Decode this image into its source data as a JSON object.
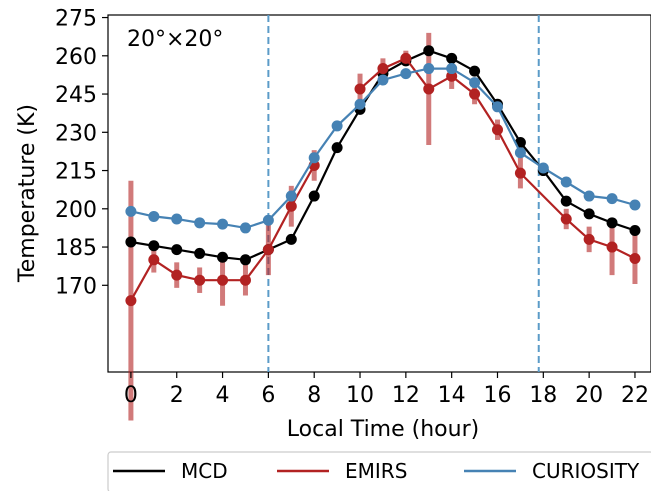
{
  "chart_data": {
    "type": "line",
    "annotation": "20°×20°",
    "xlabel": "Local Time (hour)",
    "ylabel": "Temperature (K)",
    "xlim": [
      -1,
      22.7
    ],
    "ylim": [
      136,
      276
    ],
    "xticks": [
      0,
      2,
      4,
      6,
      8,
      10,
      12,
      14,
      16,
      18,
      20,
      22
    ],
    "yticks": [
      170,
      185,
      200,
      215,
      230,
      245,
      260,
      275
    ],
    "vlines": [
      6,
      17.8
    ],
    "legend_position": "bottom",
    "series": [
      {
        "name": "MCD",
        "color": "#000000",
        "x": [
          0,
          1,
          2,
          3,
          4,
          5,
          6,
          7,
          8,
          9,
          10,
          11,
          12,
          13,
          14,
          15,
          16,
          17,
          18,
          19,
          20,
          21,
          22
        ],
        "y": [
          187,
          185.5,
          184,
          182.5,
          181,
          180,
          184,
          188,
          205,
          224,
          239,
          253,
          258,
          262,
          259,
          254,
          241,
          226,
          215,
          203,
          198,
          194.5,
          191.5
        ]
      },
      {
        "name": "EMIRS",
        "color": "#b22222",
        "x": [
          0,
          1,
          2,
          3,
          4,
          5,
          6,
          7,
          8,
          9,
          10,
          11,
          12,
          13,
          14,
          15,
          16,
          17,
          19,
          20,
          21,
          22
        ],
        "y": [
          164,
          180,
          174,
          172,
          172,
          172,
          184,
          201,
          217,
          null,
          247,
          255,
          259,
          247,
          252,
          245,
          231,
          214,
          196,
          188,
          185,
          180.5
        ],
        "err": [
          47,
          5,
          5,
          5,
          10,
          6,
          10,
          8,
          6,
          null,
          6,
          4,
          3,
          22,
          5,
          4,
          4,
          6,
          4,
          5,
          11,
          10
        ]
      },
      {
        "name": "CURIOSITY",
        "color": "#4682b4",
        "x": [
          0,
          1,
          2,
          3,
          4,
          5,
          6,
          7,
          8,
          9,
          10,
          11,
          12,
          13,
          14,
          15,
          16,
          17,
          18,
          19,
          20,
          21,
          22
        ],
        "y": [
          199,
          197,
          196,
          194.5,
          194,
          192.5,
          195.5,
          205,
          220,
          232.5,
          241,
          250.5,
          253,
          255,
          255,
          249.5,
          240,
          222,
          216,
          210.5,
          205,
          204,
          201.5
        ]
      }
    ]
  }
}
